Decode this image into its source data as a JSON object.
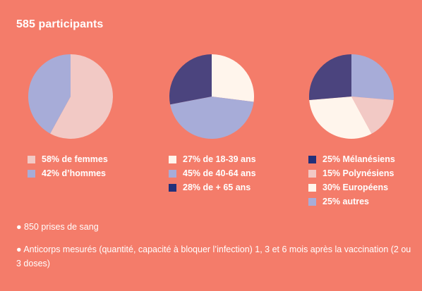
{
  "title": "585 participants",
  "chart_data": [
    {
      "type": "pie",
      "title": "",
      "slices": [
        {
          "label": "58% de femmes",
          "value": 58,
          "color": "#f2c9c5"
        },
        {
          "label": "42% d’hommes",
          "value": 42,
          "color": "#a7acd8"
        }
      ]
    },
    {
      "type": "pie",
      "title": "",
      "slices": [
        {
          "label": "27% de 18-39 ans",
          "value": 27,
          "color": "#fff5ec"
        },
        {
          "label": "45% de 40-64 ans",
          "value": 45,
          "color": "#a7acd8"
        },
        {
          "label": "28% de + 65 ans",
          "value": 28,
          "color": "#4b447e",
          "legend_color": "#23307a"
        }
      ]
    },
    {
      "type": "pie",
      "title": "",
      "slices": [
        {
          "label": "25% autres",
          "value": 25,
          "color": "#a7acd8"
        },
        {
          "label": "15% Polynésiens",
          "value": 15,
          "color": "#f2c9c5"
        },
        {
          "label": "30% Européens",
          "value": 30,
          "color": "#fff5ec"
        },
        {
          "label": "25% Mélanésiens",
          "value": 25,
          "color": "#4b447e",
          "legend_color": "#23307a"
        }
      ],
      "legend_order": [
        3,
        1,
        2,
        0
      ]
    }
  ],
  "notes": [
    "● 850 prises de sang",
    "● Anticorps mesurés (quantité, capacité à bloquer l’infection) 1, 3 et 6 mois après la vaccination (2 ou 3 doses)"
  ]
}
